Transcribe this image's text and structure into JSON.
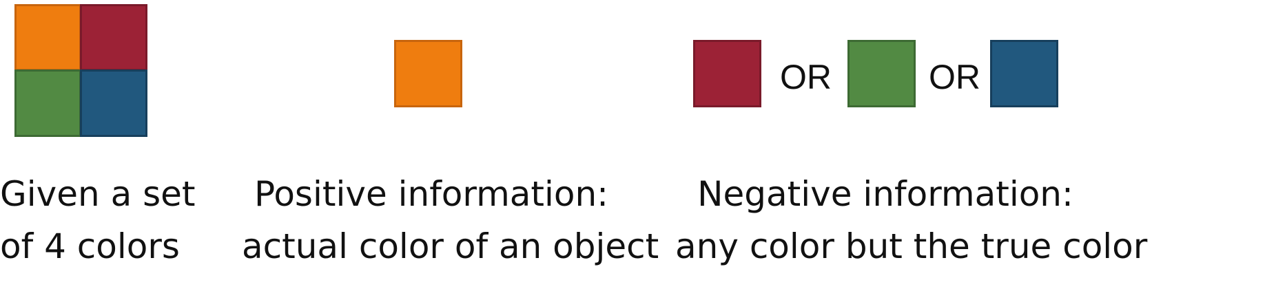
{
  "colors": {
    "orange": {
      "fill": "#EF7D0F",
      "border": "#C8650D"
    },
    "red": {
      "fill": "#9C2236",
      "border": "#7A1A2A"
    },
    "green": {
      "fill": "#528A43",
      "border": "#3D6A33"
    },
    "blue": {
      "fill": "#21587E",
      "border": "#173F5C"
    }
  },
  "panels": [
    {
      "id": "set",
      "caption": [
        "Given a set",
        "of 4 colors"
      ]
    },
    {
      "id": "positive",
      "caption": [
        "Positive information:",
        "actual color of an object"
      ]
    },
    {
      "id": "negative",
      "caption": [
        "Negative information:",
        "any color but the true color"
      ],
      "separator": "OR"
    }
  ]
}
